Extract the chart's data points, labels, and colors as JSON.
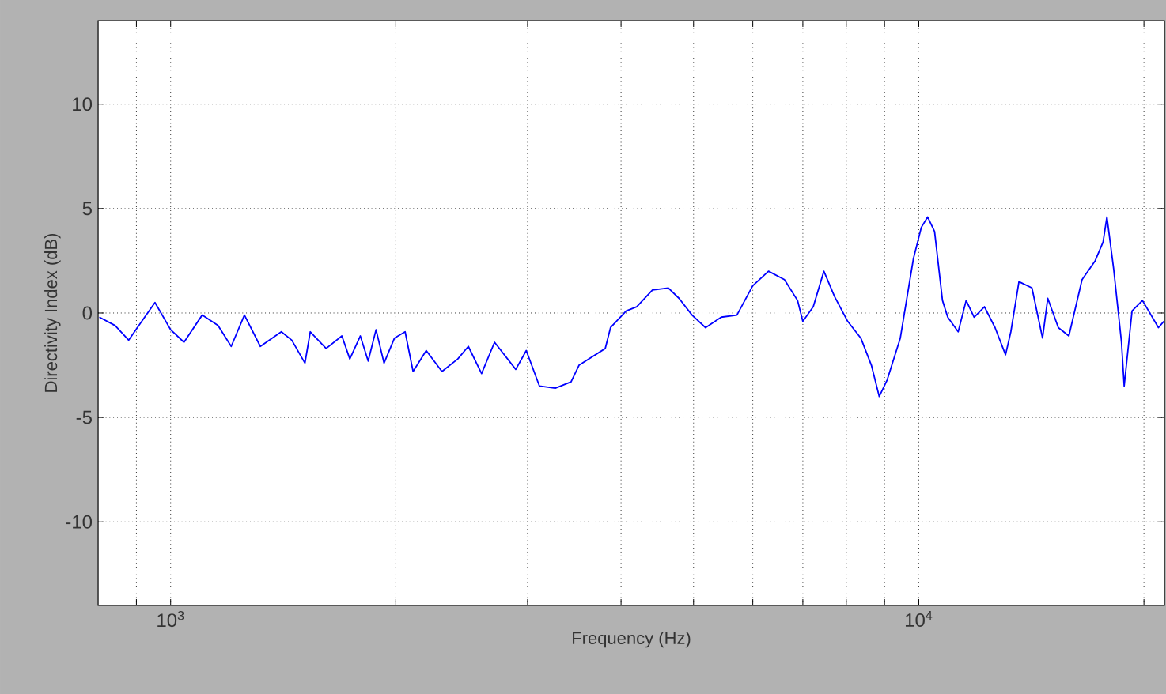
{
  "chart_data": {
    "type": "line",
    "xlabel": "Frequency (Hz)",
    "ylabel": "Directivity Index (dB)",
    "log": "x",
    "grid": true,
    "xlim": [
      800,
      21300
    ],
    "ylim": [
      -14,
      14
    ],
    "xticks": [
      {
        "value": 900,
        "label": null
      },
      {
        "value": 1000,
        "label": "10$^{3}$"
      },
      {
        "value": 2000,
        "label": null
      },
      {
        "value": 3000,
        "label": null
      },
      {
        "value": 4000,
        "label": null
      },
      {
        "value": 5000,
        "label": null
      },
      {
        "value": 6000,
        "label": null
      },
      {
        "value": 7000,
        "label": null
      },
      {
        "value": 8000,
        "label": null
      },
      {
        "value": 9000,
        "label": null
      },
      {
        "value": 10000,
        "label": "10$^{4}$"
      },
      {
        "value": 20000,
        "label": null
      }
    ],
    "yticks": [
      -10,
      -5,
      0,
      5,
      10
    ],
    "x": [
      803,
      843,
      879,
      915,
      953,
      1000,
      1042,
      1102,
      1157,
      1205,
      1255,
      1318,
      1406,
      1452,
      1512,
      1537,
      1614,
      1694,
      1736,
      1793,
      1837,
      1882,
      1929,
      1992,
      2058,
      2109,
      2196,
      2305,
      2420,
      2500,
      2604,
      2710,
      2893,
      2988,
      3112,
      3267,
      3430,
      3515,
      3810,
      3873,
      4064,
      4198,
      4406,
      4627,
      4782,
      4977,
      5188,
      5445,
      5714,
      5998,
      6298,
      6614,
      6887,
      6998,
      7228,
      7468,
      7715,
      8035,
      8366,
      8643,
      8855,
      9074,
      9448,
      9836,
      10079,
      10276,
      10498,
      10757,
      10932,
      11290,
      11570,
      11858,
      12240,
      12647,
      13060,
      13276,
      13612,
      14167,
      14637,
      14875,
      15366,
      15873,
      16530,
      17210,
      17636,
      17845,
      18220,
      18664,
      18820,
      19282,
      19911,
      20911,
      21256
    ],
    "series": [
      {
        "color": "#0000ff",
        "values": [
          -0.2,
          -0.6,
          -1.3,
          -0.4,
          0.5,
          -0.8,
          -1.4,
          -0.1,
          -0.6,
          -1.6,
          -0.1,
          -1.6,
          -0.9,
          -1.3,
          -2.4,
          -0.9,
          -1.7,
          -1.1,
          -2.2,
          -1.1,
          -2.3,
          -0.8,
          -2.4,
          -1.2,
          -0.9,
          -2.8,
          -1.8,
          -2.8,
          -2.2,
          -1.6,
          -2.9,
          -1.4,
          -2.7,
          -1.8,
          -3.5,
          -3.6,
          -3.3,
          -2.5,
          -1.7,
          -0.7,
          0.1,
          0.3,
          1.1,
          1.2,
          0.7,
          -0.1,
          -0.7,
          -0.2,
          -0.1,
          1.3,
          2.0,
          1.6,
          0.6,
          -0.4,
          0.3,
          2.0,
          0.8,
          -0.4,
          -1.2,
          -2.5,
          -4.0,
          -3.2,
          -1.2,
          2.6,
          4.1,
          4.6,
          3.9,
          0.6,
          -0.2,
          -0.9,
          0.6,
          -0.2,
          0.3,
          -0.7,
          -2.0,
          -0.9,
          1.5,
          1.2,
          -1.2,
          0.7,
          -0.7,
          -1.1,
          1.6,
          2.5,
          3.4,
          4.6,
          2.1,
          -1.4,
          -3.5,
          0.1,
          0.6,
          -0.7,
          -0.4
        ]
      }
    ]
  }
}
